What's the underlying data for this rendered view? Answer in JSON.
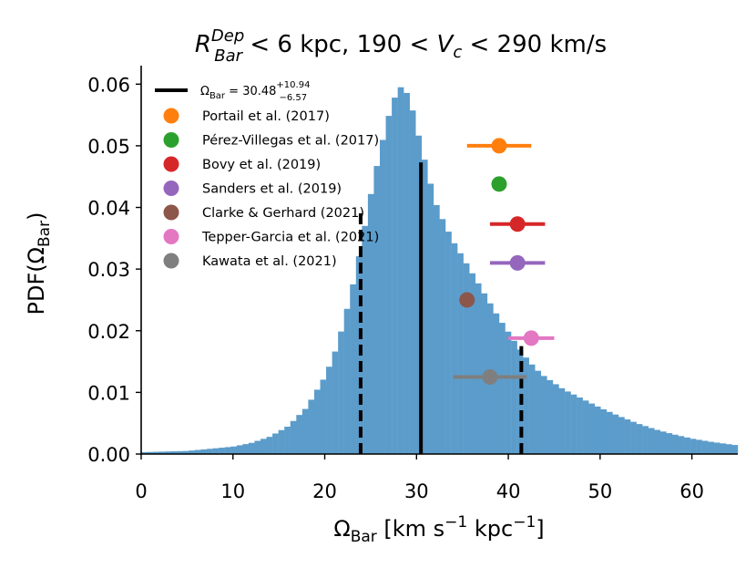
{
  "chart_data": {
    "type": "bar",
    "title": {
      "lead": "R",
      "lead_sup": "Dep",
      "lead_sub": "Bar",
      "middle": " < 6 kpc,  190 < ",
      "var": "V",
      "var_sub": "c",
      "tail": " < 290 km/s"
    },
    "xlabel": {
      "symbol": "Ω",
      "sub": "Bar",
      "unit_a": " [km s",
      "exp_a": "−1",
      "unit_b": " kpc",
      "exp_b": "−1",
      "close": "]"
    },
    "ylabel": {
      "pre": "PDF(",
      "symbol": "Ω",
      "sub": "Bar",
      "post": ")"
    },
    "xlim": [
      0,
      65
    ],
    "ylim": [
      0,
      0.063
    ],
    "xticks": [
      "0",
      "10",
      "20",
      "30",
      "40",
      "50",
      "60"
    ],
    "yticks": [
      "0.00",
      "0.01",
      "0.02",
      "0.03",
      "0.04",
      "0.05",
      "0.06"
    ],
    "bar_color": "#5b9ccb",
    "bin_width": 0.65,
    "histogram_knots": [
      [
        0,
        0.0003
      ],
      [
        5,
        0.0005
      ],
      [
        10,
        0.0012
      ],
      [
        12,
        0.0018
      ],
      [
        14,
        0.0028
      ],
      [
        16,
        0.0045
      ],
      [
        18,
        0.0075
      ],
      [
        20,
        0.0125
      ],
      [
        21,
        0.016
      ],
      [
        22,
        0.021
      ],
      [
        23,
        0.027
      ],
      [
        24,
        0.034
      ],
      [
        25,
        0.042
      ],
      [
        26,
        0.049
      ],
      [
        27,
        0.055
      ],
      [
        28,
        0.0595
      ],
      [
        28.6,
        0.0595
      ],
      [
        29.3,
        0.0575
      ],
      [
        30,
        0.053
      ],
      [
        31,
        0.047
      ],
      [
        32,
        0.041
      ],
      [
        33,
        0.0375
      ],
      [
        34,
        0.0345
      ],
      [
        35,
        0.032
      ],
      [
        36,
        0.0295
      ],
      [
        37,
        0.027
      ],
      [
        38,
        0.0245
      ],
      [
        39,
        0.022
      ],
      [
        40,
        0.0198
      ],
      [
        41,
        0.0175
      ],
      [
        42,
        0.0155
      ],
      [
        43,
        0.0138
      ],
      [
        44,
        0.0125
      ],
      [
        46,
        0.0105
      ],
      [
        48,
        0.009
      ],
      [
        50,
        0.0075
      ],
      [
        52,
        0.0062
      ],
      [
        54,
        0.005
      ],
      [
        56,
        0.004
      ],
      [
        58,
        0.0032
      ],
      [
        60,
        0.0025
      ],
      [
        62,
        0.002
      ],
      [
        65,
        0.0014
      ]
    ],
    "vlines": [
      {
        "x": 30.48,
        "y_top": 0.0473,
        "style": "solid"
      },
      {
        "x": 23.91,
        "y_top": 0.0395,
        "style": "dashed"
      },
      {
        "x": 41.42,
        "y_top": 0.0175,
        "style": "dashed"
      }
    ],
    "measurements": [
      {
        "name": "Portail et al. (2017)",
        "color": "#ff7f0e",
        "x": 39.0,
        "xerr": [
          3.5,
          3.5
        ],
        "y": 0.05
      },
      {
        "name": "Pérez-Villegas et al. (2017)",
        "color": "#2ca02c",
        "x": 39.0,
        "xerr": [
          0,
          0
        ],
        "y": 0.0438
      },
      {
        "name": "Bovy et al. (2019)",
        "color": "#d62728",
        "x": 41.0,
        "xerr": [
          3.0,
          3.0
        ],
        "y": 0.0373
      },
      {
        "name": "Sanders et al. (2019)",
        "color": "#9467bd",
        "x": 41.0,
        "xerr": [
          3.0,
          3.0
        ],
        "y": 0.031
      },
      {
        "name": "Clarke & Gerhard (2021)",
        "color": "#8c564b",
        "x": 35.5,
        "xerr": [
          0,
          0
        ],
        "y": 0.025
      },
      {
        "name": "Tepper-Garcia et al. (2021)",
        "color": "#e377c2",
        "x": 42.5,
        "xerr": [
          2.5,
          2.5
        ],
        "y": 0.0188
      },
      {
        "name": "Kawata et al. (2021)",
        "color": "#7f7f7f",
        "x": 38.0,
        "xerr": [
          4.0,
          4.0
        ],
        "y": 0.0125
      }
    ],
    "legend": {
      "placement": "upper-left",
      "line_entry": {
        "symbol": "Ω",
        "sub": "Bar",
        "value": " = 30.48",
        "sup": "+10.94",
        "low": "−6.57"
      }
    }
  }
}
